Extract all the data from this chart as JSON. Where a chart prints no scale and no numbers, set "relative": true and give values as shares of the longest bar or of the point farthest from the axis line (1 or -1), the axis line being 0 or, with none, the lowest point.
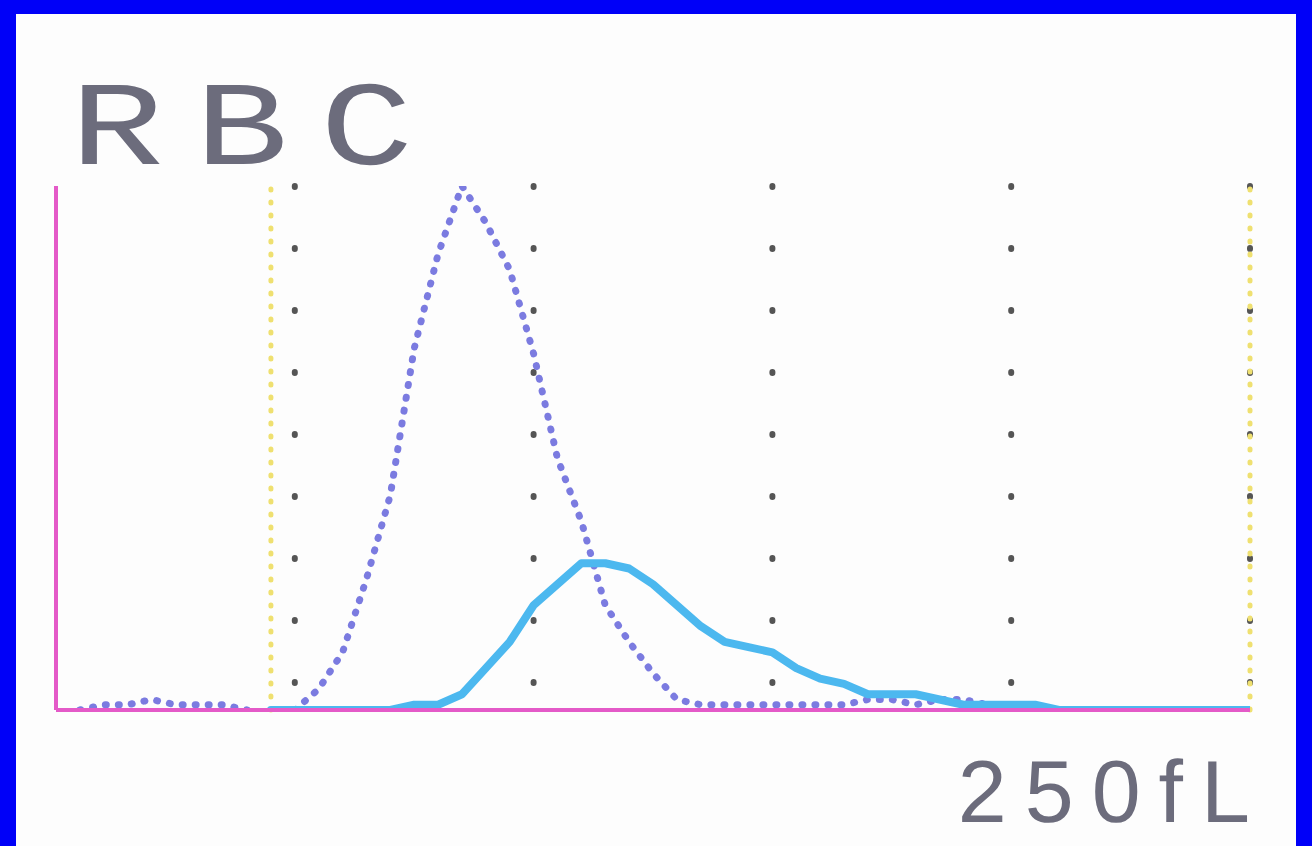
{
  "chart_data": {
    "type": "line",
    "title": "RBC",
    "relative": true,
    "grid": "x",
    "annotations": [
      "250fL"
    ],
    "categories": [
      null,
      null,
      null,
      null,
      null,
      null,
      null,
      null,
      null,
      null,
      null,
      null,
      null,
      null,
      null,
      null,
      null,
      null,
      null,
      null,
      null,
      null,
      null,
      null,
      null,
      null,
      null,
      null,
      null,
      null,
      null,
      null,
      null,
      null,
      null,
      null,
      null,
      null,
      null,
      null,
      null,
      null,
      null,
      null,
      null,
      null,
      null,
      null,
      null,
      null,
      null
    ],
    "series": [
      {
        "color": "#7b7be0",
        "line_style": "dotted",
        "values": [
          null,
          0,
          0.01,
          0.01,
          0.02,
          0.01,
          0.01,
          0.01,
          0,
          null,
          0,
          0.04,
          0.11,
          0.25,
          0.41,
          0.69,
          0.87,
          1,
          0.93,
          0.84,
          0.68,
          0.48,
          0.36,
          0.2,
          0.13,
          0.07,
          0.02,
          0.01,
          0.01,
          0.01,
          0.01,
          0.01,
          0.01,
          0.01,
          0.02,
          0.02,
          0.01,
          0.02,
          0.02,
          0.01,
          0.01,
          0,
          null,
          null,
          null,
          null,
          null,
          null,
          null,
          null,
          null
        ]
      },
      {
        "color": "#4cb8ef",
        "line_style": "solid",
        "values": [
          null,
          null,
          null,
          null,
          null,
          null,
          null,
          null,
          null,
          0,
          0,
          0,
          0,
          0,
          0,
          0.01,
          0.01,
          0.03,
          0.08,
          0.13,
          0.2,
          0.24,
          0.28,
          0.28,
          0.27,
          0.24,
          0.2,
          0.16,
          0.13,
          0.12,
          0.11,
          0.08,
          0.06,
          0.05,
          0.03,
          0.03,
          0.03,
          0.02,
          0.01,
          0.01,
          0.01,
          0.01,
          0,
          0,
          0,
          0,
          0,
          0,
          0,
          0,
          0
        ]
      }
    ]
  }
}
